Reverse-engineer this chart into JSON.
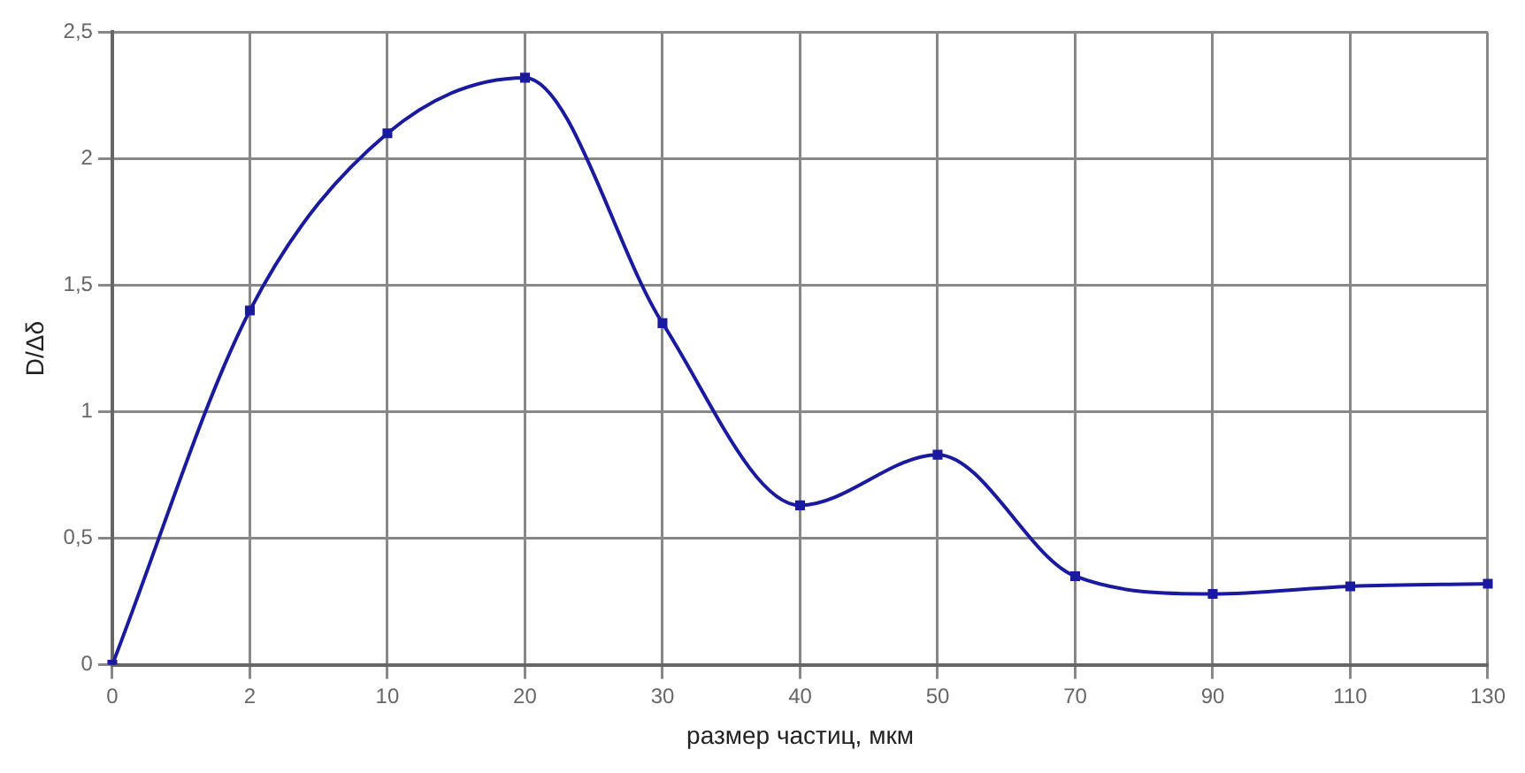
{
  "chart_data": {
    "type": "line",
    "xlabel": "размер частиц, мкм",
    "ylabel": "D/Δδ",
    "categories": [
      "0",
      "2",
      "10",
      "20",
      "30",
      "40",
      "50",
      "70",
      "90",
      "110",
      "130"
    ],
    "series": [
      {
        "color": "#1a1aa0",
        "values": [
          0,
          1.4,
          2.1,
          2.32,
          1.35,
          0.63,
          0.83,
          0.35,
          0.28,
          0.31,
          0.32
        ]
      }
    ],
    "ylim": [
      0,
      2.5
    ],
    "yticks": [
      0,
      {
        "value": 0.5,
        "label": "0,5"
      },
      1,
      {
        "value": 1.5,
        "label": "1,5"
      },
      2,
      {
        "value": 2.5,
        "label": "2,5"
      }
    ],
    "grid": true,
    "legend": false,
    "marker": "square",
    "line_style": "solid"
  }
}
